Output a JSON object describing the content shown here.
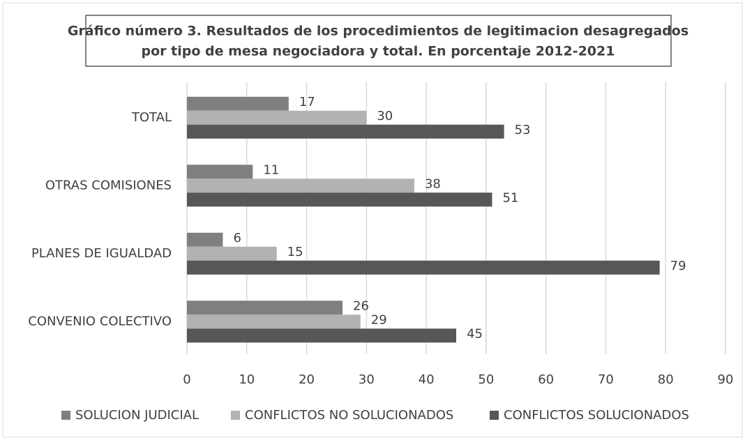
{
  "chart_data": {
    "type": "barh",
    "title": [
      "Gráfico número 3. Resultados de los procedimientos de legitimacion desagregados",
      "por tipo de mesa negociadora y total. En porcentaje 2012-2021"
    ],
    "categories": [
      "TOTAL",
      "OTRAS COMISIONES",
      "PLANES DE IGUALDAD",
      "CONVENIO COLECTIVO"
    ],
    "series": [
      {
        "name": "SOLUCION JUDICIAL",
        "color": "#7f7f7f",
        "values": [
          17,
          11,
          6,
          26
        ]
      },
      {
        "name": "CONFLICTOS NO SOLUCIONADOS",
        "color": "#b2b2b2",
        "values": [
          30,
          38,
          15,
          29
        ]
      },
      {
        "name": "CONFLICTOS SOLUCIONADOS",
        "color": "#575757",
        "values": [
          53,
          51,
          79,
          45
        ]
      }
    ],
    "xlim": [
      0,
      90
    ],
    "xticks": [
      0,
      10,
      20,
      30,
      40,
      50,
      60,
      70,
      80,
      90
    ],
    "grid": true,
    "legend": "bottom"
  }
}
